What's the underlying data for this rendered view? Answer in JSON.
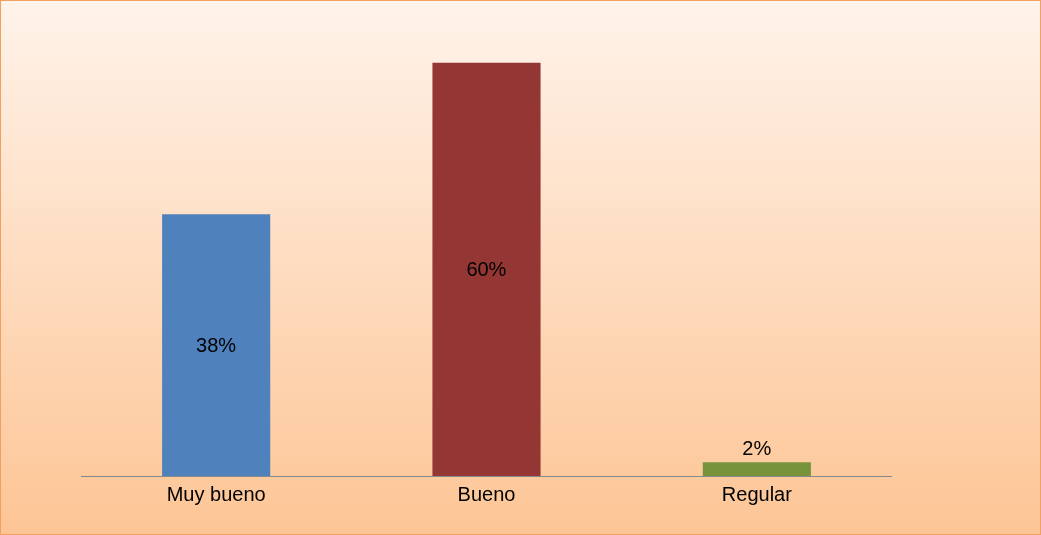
{
  "chart_data": {
    "type": "bar",
    "categories": [
      "Muy bueno",
      "Bueno",
      "Regular"
    ],
    "values": [
      38,
      60,
      2
    ],
    "colors": [
      "#4f81bd",
      "#943634",
      "#77933c"
    ],
    "value_labels": [
      "38%",
      "60%",
      "2%"
    ],
    "grid": false
  }
}
